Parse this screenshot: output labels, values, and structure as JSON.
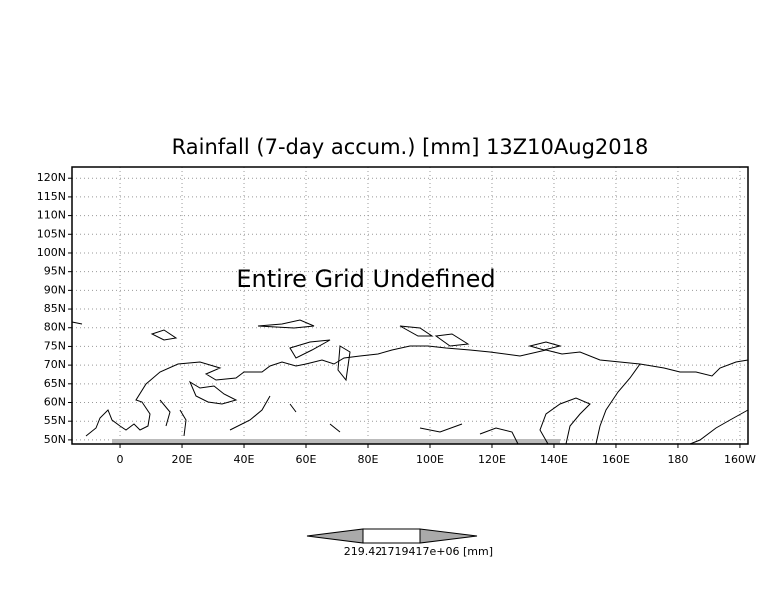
{
  "chart_data": {
    "type": "map",
    "title": "Rainfall (7-day accum.) [mm] 13Z10Aug2018",
    "annotation": "Entire Grid Undefined",
    "xlim": [
      -15.5,
      202.6
    ],
    "ylim": [
      48.9,
      123
    ],
    "xticks": [
      0,
      {
        "value": 20,
        "label": "20E"
      },
      {
        "value": 40,
        "label": "40E"
      },
      {
        "value": 60,
        "label": "60E"
      },
      {
        "value": 80,
        "label": "80E"
      },
      {
        "value": 100,
        "label": "100E"
      },
      {
        "value": 120,
        "label": "120E"
      },
      {
        "value": 140,
        "label": "140E"
      },
      {
        "value": 160,
        "label": "160E"
      },
      180,
      {
        "value": 200,
        "label": "160W"
      }
    ],
    "yticks": [
      {
        "value": 50,
        "label": "50N"
      },
      {
        "value": 55,
        "label": "55N"
      },
      {
        "value": 60,
        "label": "60N"
      },
      {
        "value": 65,
        "label": "65N"
      },
      {
        "value": 70,
        "label": "70N"
      },
      {
        "value": 75,
        "label": "75N"
      },
      {
        "value": 80,
        "label": "80N"
      },
      {
        "value": 85,
        "label": "85N"
      },
      {
        "value": 90,
        "label": "90N"
      },
      {
        "value": 95,
        "label": "95N"
      },
      {
        "value": 100,
        "label": "100N"
      },
      {
        "value": 105,
        "label": "105N"
      },
      {
        "value": 110,
        "label": "110N"
      },
      {
        "value": 115,
        "label": "115N"
      },
      {
        "value": 120,
        "label": "120N"
      }
    ],
    "grid": true,
    "colorbar": {
      "labels": [
        "219.42",
        "1719417e+06"
      ],
      "unit": "[mm]"
    }
  }
}
